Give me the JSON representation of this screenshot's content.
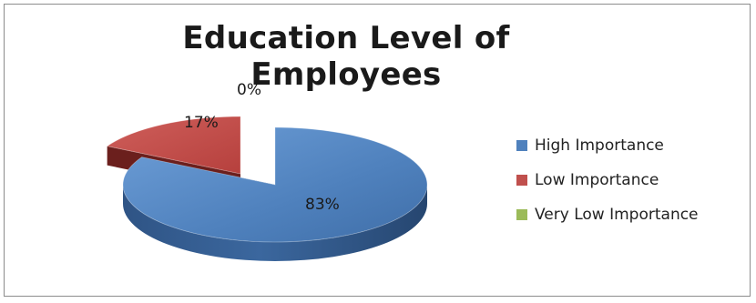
{
  "chart_data": {
    "type": "pie",
    "title": "Education Level of Employees",
    "categories": [
      "High Importance",
      "Low Importance",
      "Very Low Importance"
    ],
    "values": [
      83,
      17,
      0
    ],
    "data_labels": [
      "83%",
      "17%",
      "0%"
    ],
    "colors": [
      "#4f81bd",
      "#c0504d",
      "#9bbb59"
    ],
    "three_d": true,
    "exploded_slice": "Low Importance",
    "legend_position": "right"
  }
}
